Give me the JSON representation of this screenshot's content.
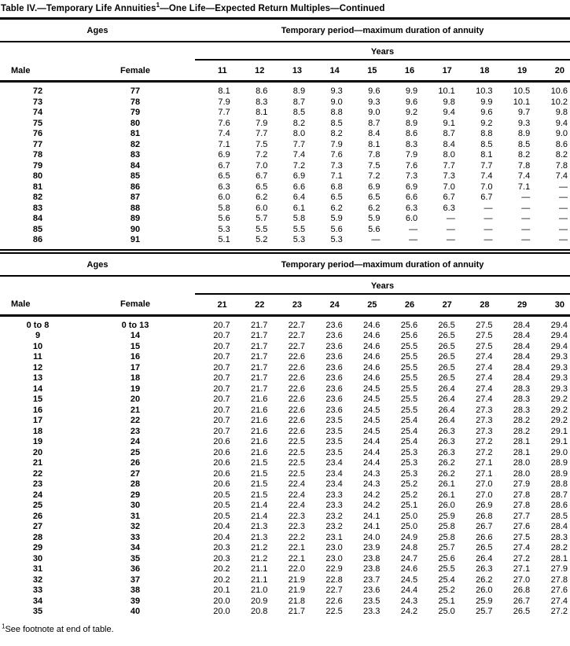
{
  "page": {
    "title": {
      "part1": "Table IV.—Temporary Life Annuities",
      "footnote_marker": "1",
      "part2": "—One Life—Expected Return Multiples—Continued"
    },
    "footnote": {
      "marker": "1",
      "text": "See footnote at end of table."
    }
  },
  "tables": [
    {
      "headers": {
        "ages": "Ages",
        "period": "Temporary period—maximum duration of annuity",
        "years_group": "Years",
        "male": "Male",
        "female": "Female"
      },
      "year_columns": [
        "11",
        "12",
        "13",
        "14",
        "15",
        "16",
        "17",
        "18",
        "19",
        "20"
      ],
      "rows": [
        {
          "male": "72",
          "female": "77",
          "values": [
            "8.1",
            "8.6",
            "8.9",
            "9.3",
            "9.6",
            "9.9",
            "10.1",
            "10.3",
            "10.5",
            "10.6"
          ]
        },
        {
          "male": "73",
          "female": "78",
          "values": [
            "7.9",
            "8.3",
            "8.7",
            "9.0",
            "9.3",
            "9.6",
            "9.8",
            "9.9",
            "10.1",
            "10.2"
          ]
        },
        {
          "male": "74",
          "female": "79",
          "values": [
            "7.7",
            "8.1",
            "8.5",
            "8.8",
            "9.0",
            "9.2",
            "9.4",
            "9.6",
            "9.7",
            "9.8"
          ]
        },
        {
          "male": "75",
          "female": "80",
          "values": [
            "7.6",
            "7.9",
            "8.2",
            "8.5",
            "8.7",
            "8.9",
            "9.1",
            "9.2",
            "9.3",
            "9.4"
          ]
        },
        {
          "male": "76",
          "female": "81",
          "values": [
            "7.4",
            "7.7",
            "8.0",
            "8.2",
            "8.4",
            "8.6",
            "8.7",
            "8.8",
            "8.9",
            "9.0"
          ]
        },
        {
          "male": "77",
          "female": "82",
          "values": [
            "7.1",
            "7.5",
            "7.7",
            "7.9",
            "8.1",
            "8.3",
            "8.4",
            "8.5",
            "8.5",
            "8.6"
          ]
        },
        {
          "male": "78",
          "female": "83",
          "values": [
            "6.9",
            "7.2",
            "7.4",
            "7.6",
            "7.8",
            "7.9",
            "8.0",
            "8.1",
            "8.2",
            "8.2"
          ]
        },
        {
          "male": "79",
          "female": "84",
          "values": [
            "6.7",
            "7.0",
            "7.2",
            "7.3",
            "7.5",
            "7.6",
            "7.7",
            "7.7",
            "7.8",
            "7.8"
          ]
        },
        {
          "male": "80",
          "female": "85",
          "values": [
            "6.5",
            "6.7",
            "6.9",
            "7.1",
            "7.2",
            "7.3",
            "7.3",
            "7.4",
            "7.4",
            "7.4"
          ]
        },
        {
          "male": "81",
          "female": "86",
          "values": [
            "6.3",
            "6.5",
            "6.6",
            "6.8",
            "6.9",
            "6.9",
            "7.0",
            "7.0",
            "7.1",
            "—"
          ]
        },
        {
          "male": "82",
          "female": "87",
          "values": [
            "6.0",
            "6.2",
            "6.4",
            "6.5",
            "6.5",
            "6.6",
            "6.7",
            "6.7",
            "—",
            "—"
          ]
        },
        {
          "male": "83",
          "female": "88",
          "values": [
            "5.8",
            "6.0",
            "6.1",
            "6.2",
            "6.2",
            "6.3",
            "6.3",
            "—",
            "—",
            "—"
          ]
        },
        {
          "male": "84",
          "female": "89",
          "values": [
            "5.6",
            "5.7",
            "5.8",
            "5.9",
            "5.9",
            "6.0",
            "—",
            "—",
            "—",
            "—"
          ]
        },
        {
          "male": "85",
          "female": "90",
          "values": [
            "5.3",
            "5.5",
            "5.5",
            "5.6",
            "5.6",
            "—",
            "—",
            "—",
            "—",
            "—"
          ]
        },
        {
          "male": "86",
          "female": "91",
          "values": [
            "5.1",
            "5.2",
            "5.3",
            "5.3",
            "—",
            "—",
            "—",
            "—",
            "—",
            "—"
          ]
        }
      ]
    },
    {
      "headers": {
        "ages": "Ages",
        "period": "Temporary period—maximum duration of annuity",
        "years_group": "Years",
        "male": "Male",
        "female": "Female"
      },
      "year_columns": [
        "21",
        "22",
        "23",
        "24",
        "25",
        "26",
        "27",
        "28",
        "29",
        "30"
      ],
      "rows": [
        {
          "male": "0 to 8",
          "female": "0 to 13",
          "values": [
            "20.7",
            "21.7",
            "22.7",
            "23.6",
            "24.6",
            "25.6",
            "26.5",
            "27.5",
            "28.4",
            "29.4"
          ]
        },
        {
          "male": "9",
          "female": "14",
          "values": [
            "20.7",
            "21.7",
            "22.7",
            "23.6",
            "24.6",
            "25.6",
            "26.5",
            "27.5",
            "28.4",
            "29.4"
          ]
        },
        {
          "male": "10",
          "female": "15",
          "values": [
            "20.7",
            "21.7",
            "22.7",
            "23.6",
            "24.6",
            "25.5",
            "26.5",
            "27.5",
            "28.4",
            "29.4"
          ]
        },
        {
          "male": "11",
          "female": "16",
          "values": [
            "20.7",
            "21.7",
            "22.6",
            "23.6",
            "24.6",
            "25.5",
            "26.5",
            "27.4",
            "28.4",
            "29.3"
          ]
        },
        {
          "male": "12",
          "female": "17",
          "values": [
            "20.7",
            "21.7",
            "22.6",
            "23.6",
            "24.6",
            "25.5",
            "26.5",
            "27.4",
            "28.4",
            "29.3"
          ]
        },
        {
          "male": "13",
          "female": "18",
          "values": [
            "20.7",
            "21.7",
            "22.6",
            "23.6",
            "24.6",
            "25.5",
            "26.5",
            "27.4",
            "28.4",
            "29.3"
          ]
        },
        {
          "male": "14",
          "female": "19",
          "values": [
            "20.7",
            "21.7",
            "22.6",
            "23.6",
            "24.5",
            "25.5",
            "26.4",
            "27.4",
            "28.3",
            "29.3"
          ]
        },
        {
          "male": "15",
          "female": "20",
          "values": [
            "20.7",
            "21.6",
            "22.6",
            "23.6",
            "24.5",
            "25.5",
            "26.4",
            "27.4",
            "28.3",
            "29.2"
          ]
        },
        {
          "male": "16",
          "female": "21",
          "values": [
            "20.7",
            "21.6",
            "22.6",
            "23.6",
            "24.5",
            "25.5",
            "26.4",
            "27.3",
            "28.3",
            "29.2"
          ]
        },
        {
          "male": "17",
          "female": "22",
          "values": [
            "20.7",
            "21.6",
            "22.6",
            "23.5",
            "24.5",
            "25.4",
            "26.4",
            "27.3",
            "28.2",
            "29.2"
          ]
        },
        {
          "male": "18",
          "female": "23",
          "values": [
            "20.7",
            "21.6",
            "22.6",
            "23.5",
            "24.5",
            "25.4",
            "26.3",
            "27.3",
            "28.2",
            "29.1"
          ]
        },
        {
          "male": "19",
          "female": "24",
          "values": [
            "20.6",
            "21.6",
            "22.5",
            "23.5",
            "24.4",
            "25.4",
            "26.3",
            "27.2",
            "28.1",
            "29.1"
          ]
        },
        {
          "male": "20",
          "female": "25",
          "values": [
            "20.6",
            "21.6",
            "22.5",
            "23.5",
            "24.4",
            "25.3",
            "26.3",
            "27.2",
            "28.1",
            "29.0"
          ]
        },
        {
          "male": "21",
          "female": "26",
          "values": [
            "20.6",
            "21.5",
            "22.5",
            "23.4",
            "24.4",
            "25.3",
            "26.2",
            "27.1",
            "28.0",
            "28.9"
          ]
        },
        {
          "male": "22",
          "female": "27",
          "values": [
            "20.6",
            "21.5",
            "22.5",
            "23.4",
            "24.3",
            "25.3",
            "26.2",
            "27.1",
            "28.0",
            "28.9"
          ]
        },
        {
          "male": "23",
          "female": "28",
          "values": [
            "20.6",
            "21.5",
            "22.4",
            "23.4",
            "24.3",
            "25.2",
            "26.1",
            "27.0",
            "27.9",
            "28.8"
          ]
        },
        {
          "male": "24",
          "female": "29",
          "values": [
            "20.5",
            "21.5",
            "22.4",
            "23.3",
            "24.2",
            "25.2",
            "26.1",
            "27.0",
            "27.8",
            "28.7"
          ]
        },
        {
          "male": "25",
          "female": "30",
          "values": [
            "20.5",
            "21.4",
            "22.4",
            "23.3",
            "24.2",
            "25.1",
            "26.0",
            "26.9",
            "27.8",
            "28.6"
          ]
        },
        {
          "male": "26",
          "female": "31",
          "values": [
            "20.5",
            "21.4",
            "22.3",
            "23.2",
            "24.1",
            "25.0",
            "25.9",
            "26.8",
            "27.7",
            "28.5"
          ]
        },
        {
          "male": "27",
          "female": "32",
          "values": [
            "20.4",
            "21.3",
            "22.3",
            "23.2",
            "24.1",
            "25.0",
            "25.8",
            "26.7",
            "27.6",
            "28.4"
          ]
        },
        {
          "male": "28",
          "female": "33",
          "values": [
            "20.4",
            "21.3",
            "22.2",
            "23.1",
            "24.0",
            "24.9",
            "25.8",
            "26.6",
            "27.5",
            "28.3"
          ]
        },
        {
          "male": "29",
          "female": "34",
          "values": [
            "20.3",
            "21.2",
            "22.1",
            "23.0",
            "23.9",
            "24.8",
            "25.7",
            "26.5",
            "27.4",
            "28.2"
          ]
        },
        {
          "male": "30",
          "female": "35",
          "values": [
            "20.3",
            "21.2",
            "22.1",
            "23.0",
            "23.8",
            "24.7",
            "25.6",
            "26.4",
            "27.2",
            "28.1"
          ]
        },
        {
          "male": "31",
          "female": "36",
          "values": [
            "20.2",
            "21.1",
            "22.0",
            "22.9",
            "23.8",
            "24.6",
            "25.5",
            "26.3",
            "27.1",
            "27.9"
          ]
        },
        {
          "male": "32",
          "female": "37",
          "values": [
            "20.2",
            "21.1",
            "21.9",
            "22.8",
            "23.7",
            "24.5",
            "25.4",
            "26.2",
            "27.0",
            "27.8"
          ]
        },
        {
          "male": "33",
          "female": "38",
          "values": [
            "20.1",
            "21.0",
            "21.9",
            "22.7",
            "23.6",
            "24.4",
            "25.2",
            "26.0",
            "26.8",
            "27.6"
          ]
        },
        {
          "male": "34",
          "female": "39",
          "values": [
            "20.0",
            "20.9",
            "21.8",
            "22.6",
            "23.5",
            "24.3",
            "25.1",
            "25.9",
            "26.7",
            "27.4"
          ]
        },
        {
          "male": "35",
          "female": "40",
          "values": [
            "20.0",
            "20.8",
            "21.7",
            "22.5",
            "23.3",
            "24.2",
            "25.0",
            "25.7",
            "26.5",
            "27.2"
          ]
        }
      ]
    }
  ]
}
